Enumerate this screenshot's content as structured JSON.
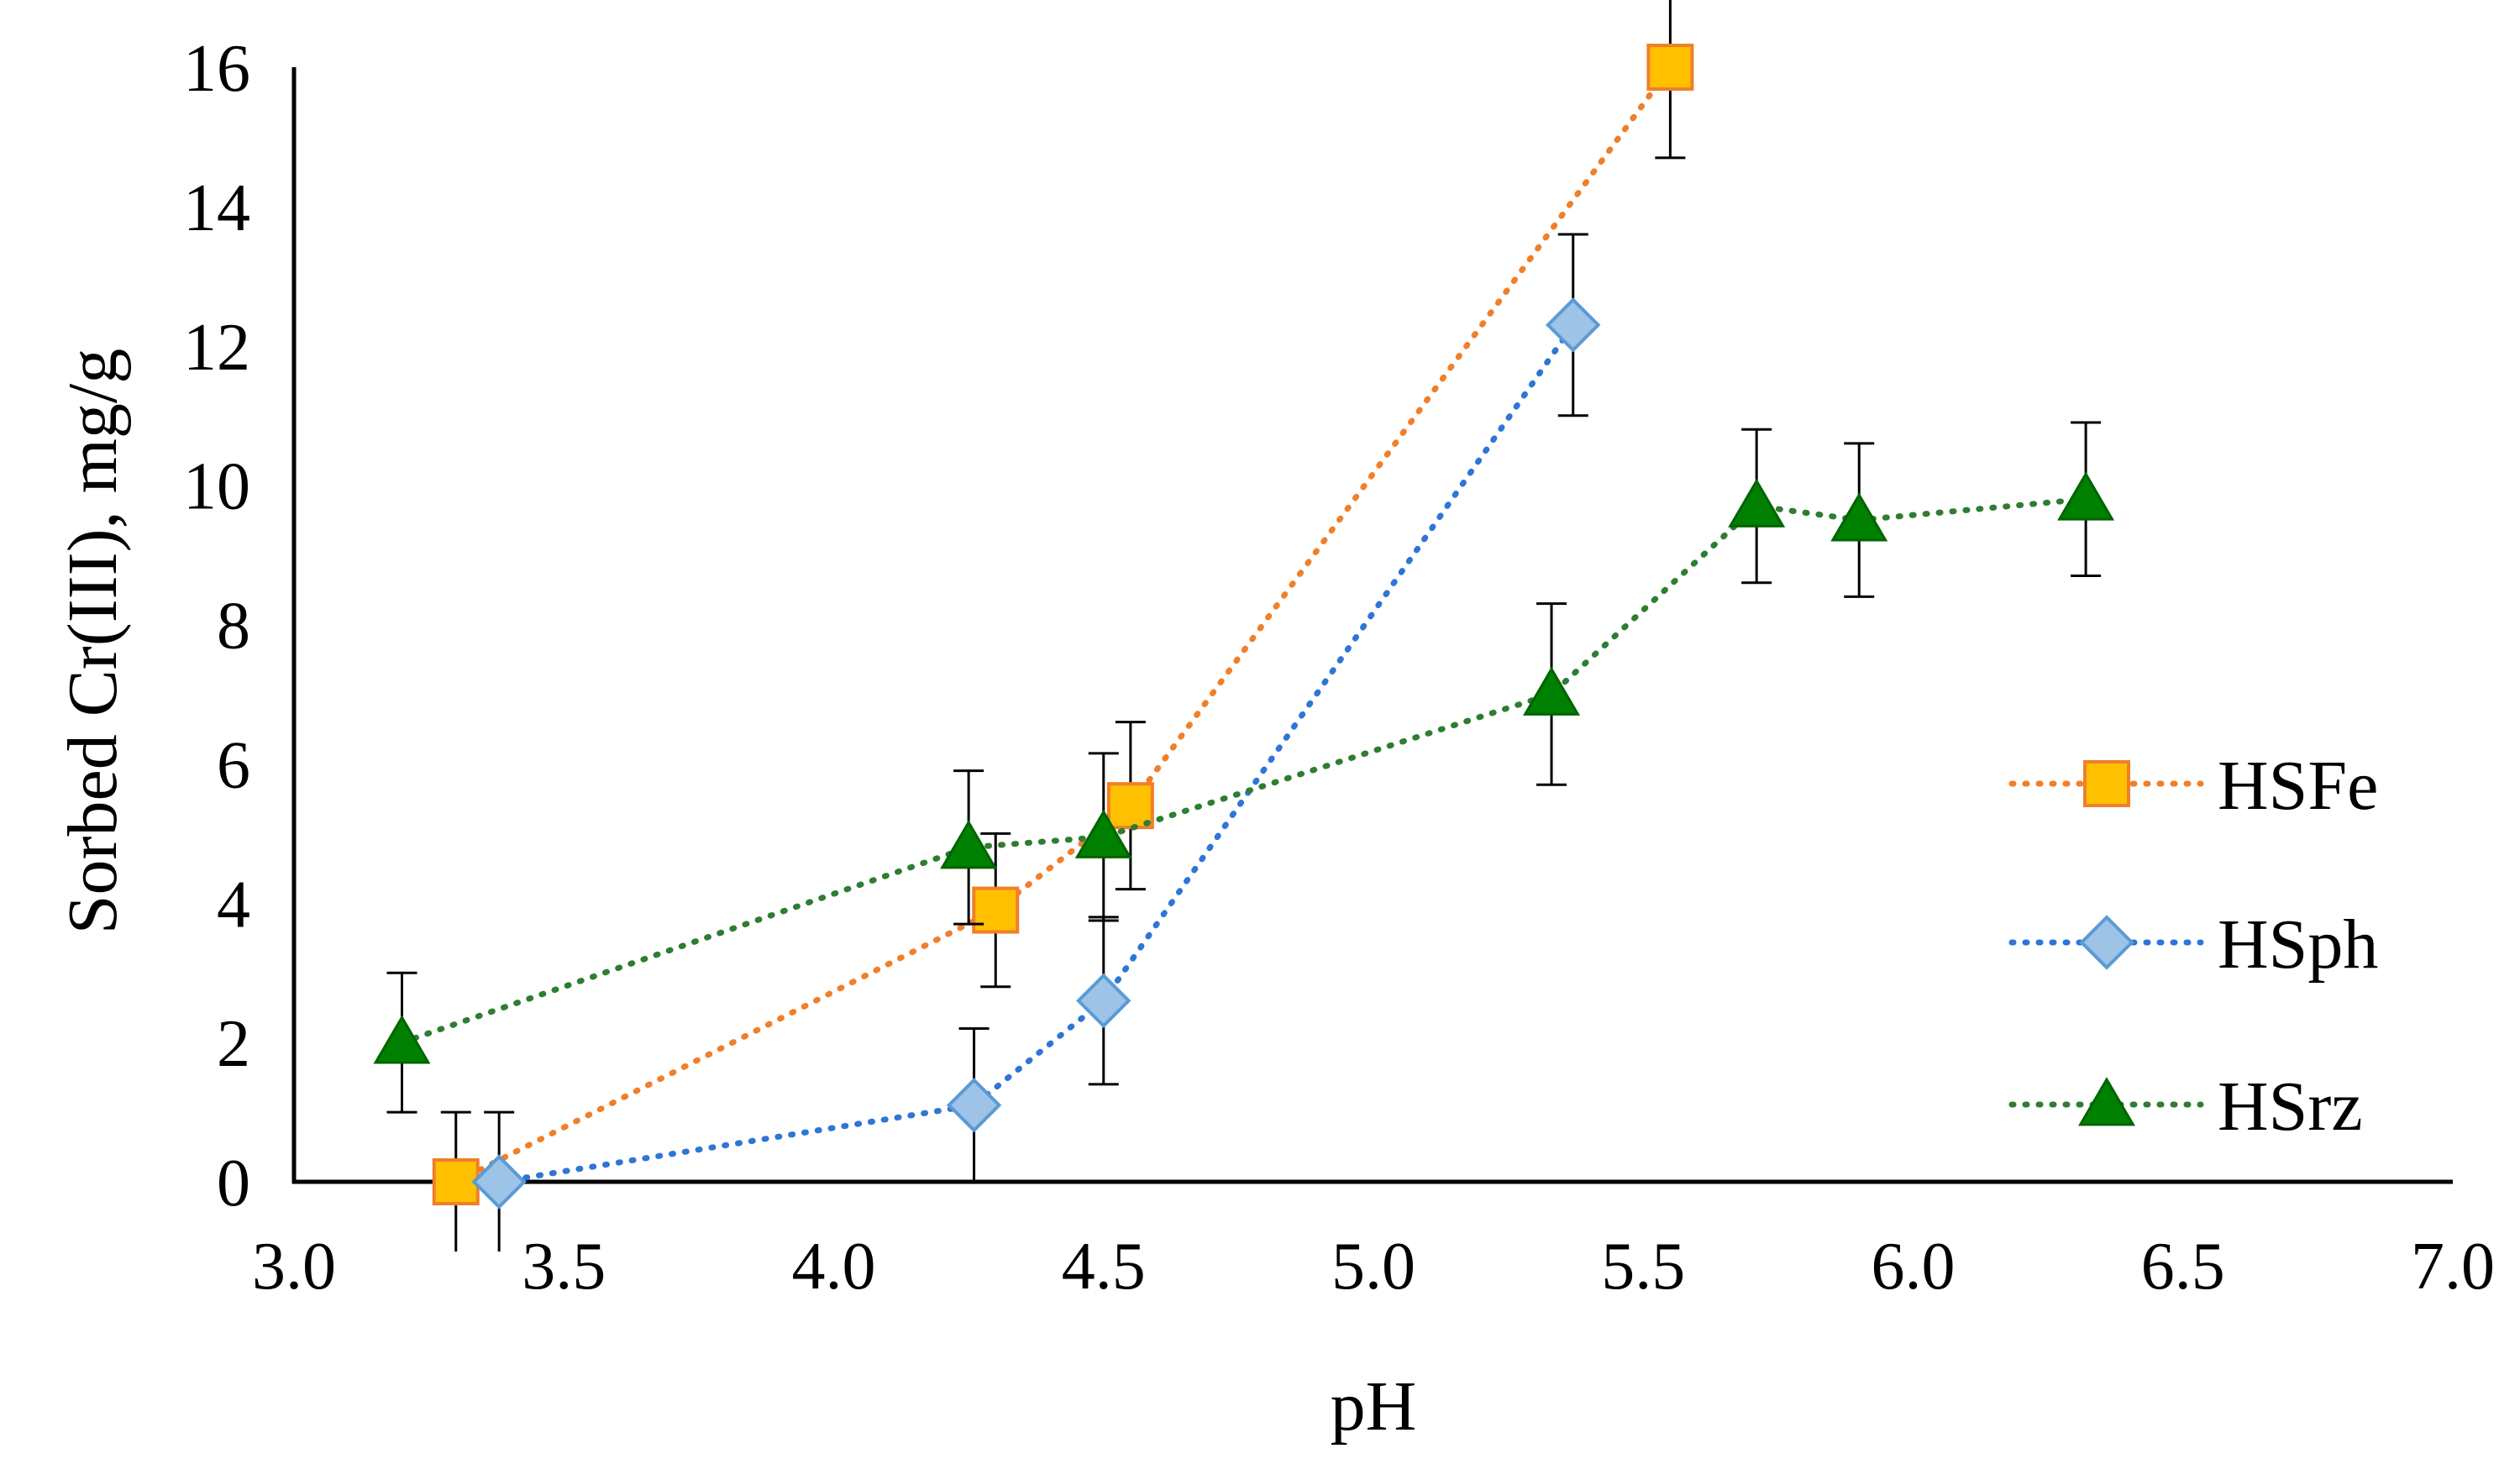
{
  "chart_data": {
    "type": "scatter",
    "title": "",
    "xlabel": "pH",
    "ylabel": "Sorbed Cr(III), mg/g",
    "xlim": [
      3.0,
      7.0
    ],
    "ylim": [
      0,
      16
    ],
    "xticks": [
      "3.0",
      "3.5",
      "4.0",
      "4.5",
      "5.0",
      "5.5",
      "6.0",
      "6.5",
      "7.0"
    ],
    "yticks": [
      "0",
      "2",
      "4",
      "6",
      "8",
      "10",
      "12",
      "14",
      "16"
    ],
    "grid": false,
    "legend_position": "right",
    "series": [
      {
        "name": "HSFe",
        "marker": "square",
        "line_color": "#F07F2A",
        "marker_fill": "#FFC000",
        "marker_edge": "#F07F2A",
        "x": [
          3.3,
          4.3,
          4.55,
          5.55
        ],
        "y": [
          0.0,
          3.9,
          5.4,
          16.0
        ],
        "err": [
          1.0,
          1.1,
          1.2,
          1.3
        ]
      },
      {
        "name": "HSph",
        "marker": "diamond",
        "line_color": "#2E75D6",
        "marker_fill": "#9DC3E6",
        "marker_edge": "#5B9BD5",
        "x": [
          3.38,
          4.26,
          4.5,
          5.37
        ],
        "y": [
          0.0,
          1.1,
          2.6,
          12.3
        ],
        "err": [
          1.0,
          1.1,
          1.2,
          1.3
        ]
      },
      {
        "name": "HSrz",
        "marker": "triangle",
        "line_color": "#2E7D32",
        "marker_fill": "#008000",
        "marker_edge": "#006400",
        "x": [
          3.2,
          4.25,
          4.5,
          5.33,
          5.71,
          5.9,
          6.32
        ],
        "y": [
          2.0,
          4.8,
          4.95,
          7.0,
          9.7,
          9.5,
          9.8
        ],
        "err": [
          1.0,
          1.1,
          1.2,
          1.3,
          1.1,
          1.1,
          1.1
        ]
      }
    ]
  }
}
